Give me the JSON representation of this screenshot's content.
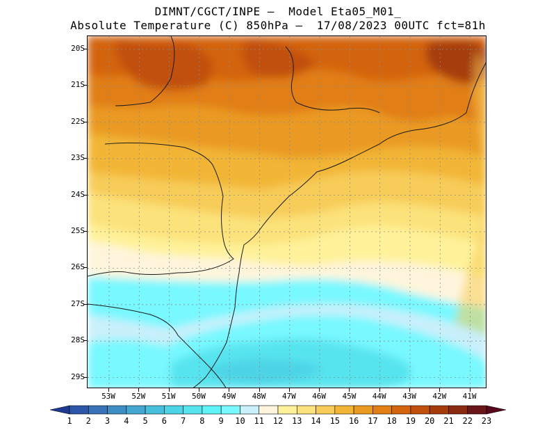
{
  "header": {
    "line1": "DIMNT/CGCT/INPE –  Model Eta05_M01_",
    "line2": "Absolute Temperature (C) 850hPa –  17/08/2023 00UTC fct=81h"
  },
  "axes": {
    "lat_labels": [
      "20S",
      "21S",
      "22S",
      "23S",
      "24S",
      "25S",
      "26S",
      "27S",
      "28S",
      "29S"
    ],
    "lon_labels": [
      "53W",
      "52W",
      "51W",
      "50W",
      "49W",
      "48W",
      "47W",
      "46W",
      "45W",
      "44W",
      "43W",
      "42W",
      "41W"
    ]
  },
  "colorbar": {
    "labels": [
      "1",
      "2",
      "3",
      "4",
      "5",
      "6",
      "7",
      "8",
      "9",
      "10",
      "11",
      "12",
      "13",
      "14",
      "15",
      "16",
      "17",
      "18",
      "19",
      "20",
      "21",
      "22",
      "23"
    ],
    "colors": [
      "#1f3a93",
      "#2c56a8",
      "#3773b6",
      "#3d8ec3",
      "#43a7d1",
      "#46bfdc",
      "#4dd4e6",
      "#56e4ef",
      "#5ff2f7",
      "#78f8ff",
      "#c9f0fb",
      "#fff5dc",
      "#fff29a",
      "#fce27a",
      "#f7cc58",
      "#f2b535",
      "#ea9a20",
      "#e17e14",
      "#d4640e",
      "#c1500c",
      "#a63c0b",
      "#8a2a10",
      "#6a1518",
      "#57091c"
    ]
  },
  "map": {
    "fields": [
      {
        "level": "17",
        "color": "#ea9a20"
      },
      {
        "level": "18",
        "color": "#e17e14"
      },
      {
        "level": "19",
        "color": "#d4640e"
      },
      {
        "level": "20",
        "color": "#c1500c"
      },
      {
        "level": "15",
        "color": "#f2b535"
      },
      {
        "level": "14",
        "color": "#f7cc58"
      },
      {
        "level": "13",
        "color": "#fce27a"
      },
      {
        "level": "12",
        "color": "#fff29a"
      },
      {
        "level": "11",
        "color": "#fff5dc"
      },
      {
        "level": "10",
        "color": "#c9f0fb"
      },
      {
        "level": "9",
        "color": "#78f8ff"
      },
      {
        "level": "8",
        "color": "#5ff2f7"
      },
      {
        "level": "7",
        "color": "#56e4ef"
      },
      {
        "level": "6",
        "color": "#4dd4e6"
      }
    ]
  }
}
